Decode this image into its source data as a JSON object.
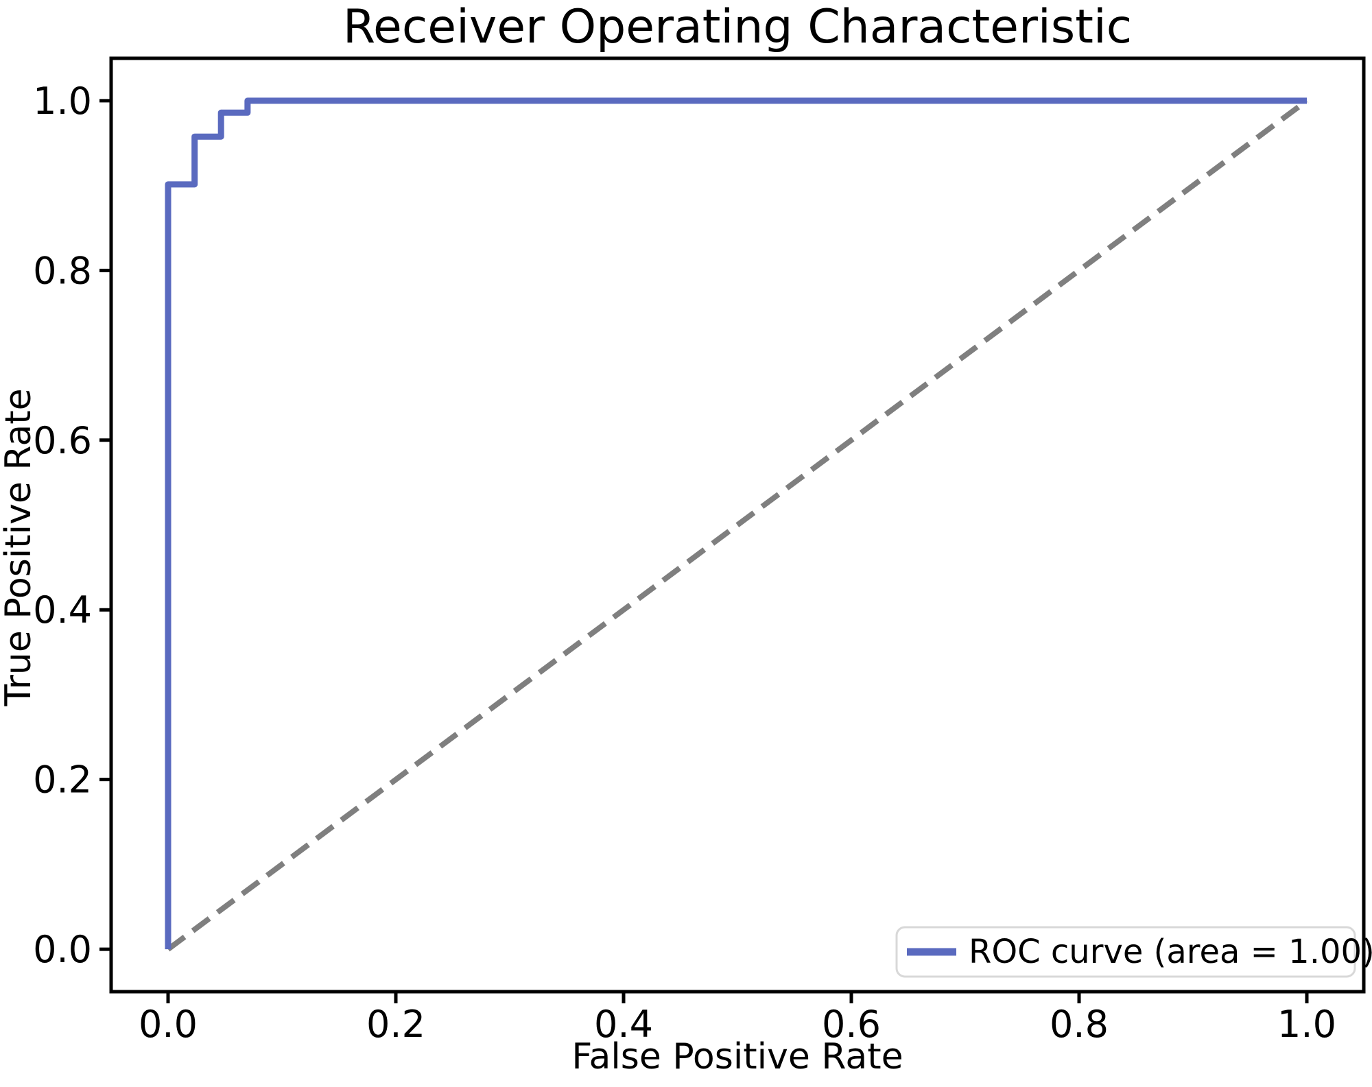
{
  "figure": {
    "background": "#ffffff"
  },
  "chart_data": {
    "type": "line",
    "title": "Receiver Operating Characteristic",
    "xlabel": "False Positive Rate",
    "ylabel": "True Positive Rate",
    "xlim": [
      -0.05,
      1.05
    ],
    "ylim": [
      -0.05,
      1.05
    ],
    "x_ticks": [
      0.0,
      0.2,
      0.4,
      0.6,
      0.8,
      1.0
    ],
    "y_ticks": [
      0.0,
      0.2,
      0.4,
      0.6,
      0.8,
      1.0
    ],
    "tick_decimals": 1,
    "grid": false,
    "auc_text": "1.00",
    "series": [
      {
        "name": "chance-diagonal",
        "style": "dashed",
        "color": "#7f7f7f",
        "linewidth": 8,
        "dash": "30 15",
        "x": [
          0.0,
          1.0
        ],
        "y": [
          0.0,
          1.0
        ]
      },
      {
        "name": "roc-curve",
        "style": "solid",
        "color": "#5a6abf",
        "linewidth": 9,
        "x": [
          0.0,
          0.0,
          0.0233,
          0.0233,
          0.0465,
          0.0465,
          0.0698,
          0.0698,
          1.0
        ],
        "y": [
          0.0,
          0.9014,
          0.9014,
          0.9577,
          0.9577,
          0.9859,
          0.9859,
          1.0,
          1.0
        ]
      }
    ],
    "legend": {
      "position": "lower right",
      "border_color": "#d8d8d8",
      "background": "#ffffff",
      "entries": [
        {
          "label": "ROC curve (area = 1.00)",
          "color": "#5a6abf"
        }
      ]
    }
  }
}
